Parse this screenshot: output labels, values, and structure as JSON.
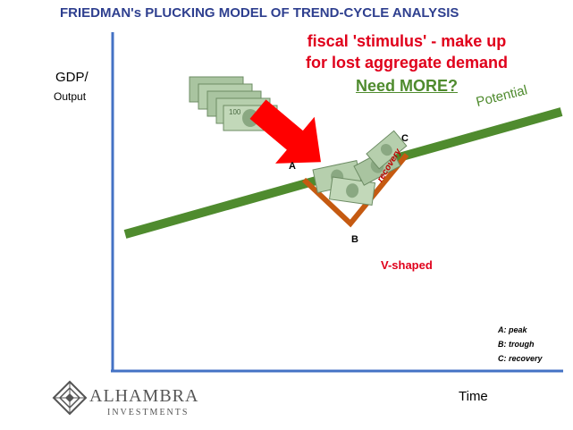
{
  "title": "FRIEDMAN's PLUCKING MODEL OF TREND-CYCLE ANALYSIS",
  "axes": {
    "y_label_line1": "GDP/",
    "y_label_line2": "Output",
    "x_label": "Time"
  },
  "callout": {
    "line1": "fiscal 'stimulus' - make up",
    "line2": "for lost aggregate demand",
    "line3": "Need MORE?"
  },
  "trend_label": "Potential",
  "points": {
    "a": "A",
    "b": "B",
    "c": "C"
  },
  "recovery_label": "recovery",
  "shape_label": "V-shaped",
  "legend": [
    "A: peak",
    "B: trough",
    "C: recovery"
  ],
  "logo": {
    "word": "ALHAMBRA",
    "sub": "INVESTMENTS"
  },
  "colors": {
    "title": "#2e3f8f",
    "callout": "#e0001b",
    "trend": "#4f8b2e",
    "v_shape": "#c55a11",
    "arrow": "#ff0000",
    "axis": "#4472c4"
  },
  "icons": [
    "money-stack-icon",
    "red-arrow-icon",
    "money-pile-icon",
    "diamond-logo-icon"
  ]
}
